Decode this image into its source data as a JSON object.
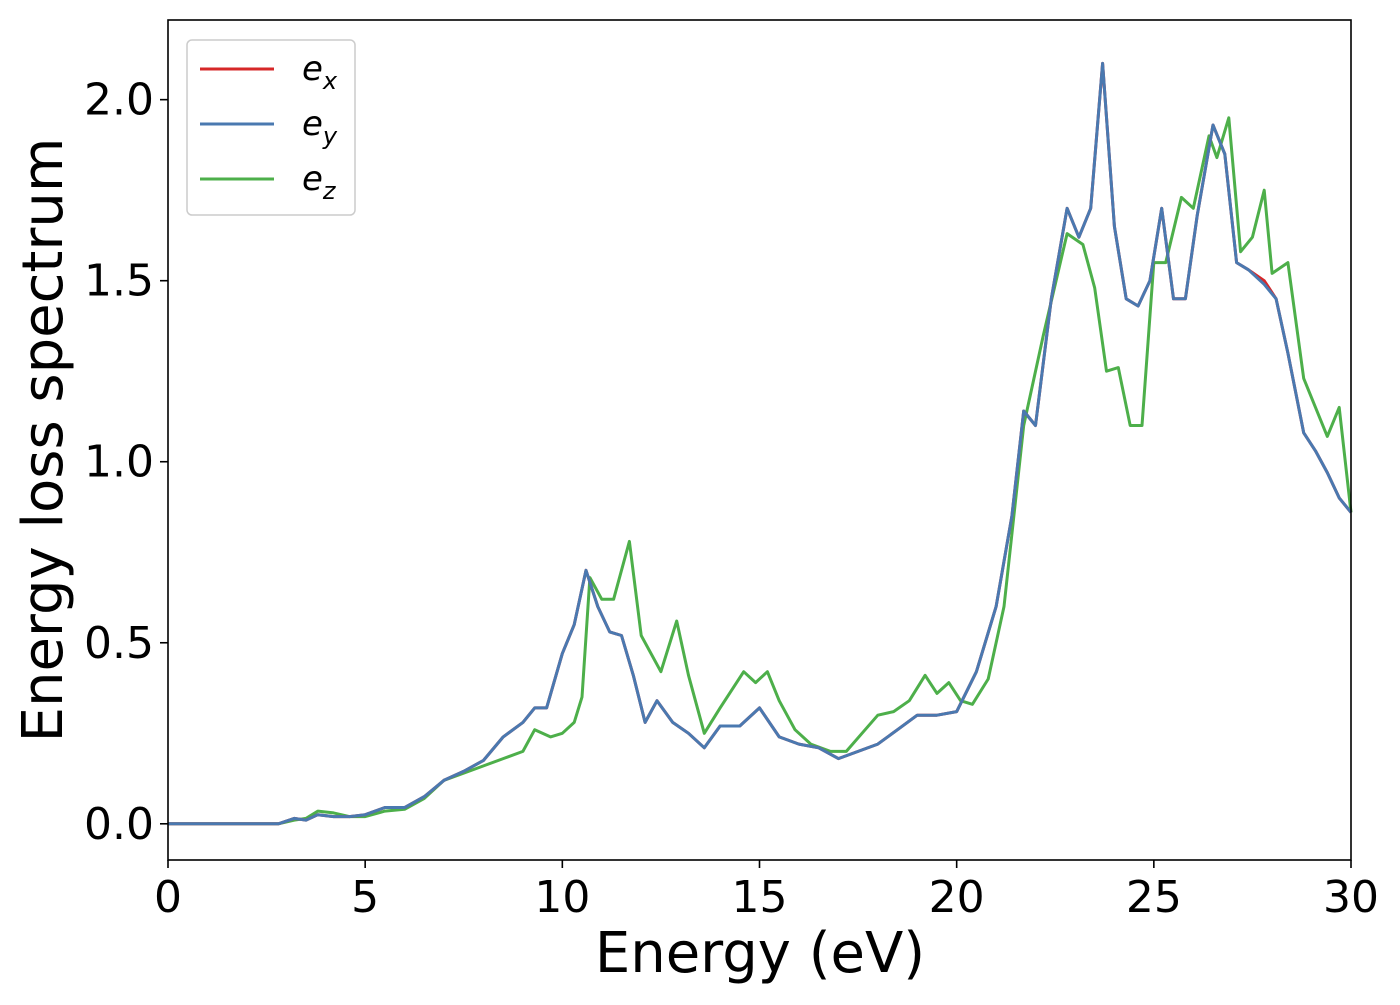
{
  "chart_data": {
    "type": "line",
    "xlabel": "Energy (eV)",
    "ylabel": "Energy loss spectrum",
    "xlim": [
      0,
      30
    ],
    "ylim": [
      -0.1,
      2.22
    ],
    "x_ticks": [
      "0",
      "5",
      "10",
      "15",
      "20",
      "25",
      "30"
    ],
    "y_ticks": [
      "0.0",
      "0.5",
      "1.0",
      "1.5",
      "2.0"
    ],
    "grid": false,
    "legend_position": "top-left",
    "series": [
      {
        "name_base": "e",
        "name_sub": "x",
        "color": "#d62728",
        "x": [
          0,
          2.8,
          3.2,
          3.5,
          3.8,
          4.2,
          4.6,
          5.0,
          5.5,
          6.0,
          6.5,
          7.0,
          7.5,
          8.0,
          8.5,
          9.0,
          9.3,
          9.6,
          10.0,
          10.3,
          10.6,
          10.9,
          11.2,
          11.5,
          11.8,
          12.1,
          12.4,
          12.8,
          13.2,
          13.6,
          14.0,
          14.5,
          15.0,
          15.5,
          16.0,
          16.5,
          17.0,
          17.5,
          18.0,
          18.5,
          19.0,
          19.5,
          20.0,
          20.5,
          21.0,
          21.4,
          21.7,
          22.0,
          22.4,
          22.8,
          23.1,
          23.4,
          23.7,
          24.0,
          24.3,
          24.6,
          24.9,
          25.2,
          25.5,
          25.8,
          26.1,
          26.5,
          26.8,
          27.1,
          27.4,
          27.8,
          28.1,
          28.4,
          28.8,
          29.1,
          29.4,
          29.7,
          30.0
        ],
        "values": [
          0.0,
          0.0,
          0.015,
          0.01,
          0.025,
          0.02,
          0.02,
          0.025,
          0.045,
          0.045,
          0.075,
          0.12,
          0.145,
          0.175,
          0.24,
          0.28,
          0.32,
          0.32,
          0.47,
          0.55,
          0.7,
          0.6,
          0.53,
          0.52,
          0.41,
          0.28,
          0.34,
          0.28,
          0.25,
          0.21,
          0.27,
          0.27,
          0.32,
          0.24,
          0.22,
          0.21,
          0.18,
          0.2,
          0.22,
          0.26,
          0.3,
          0.3,
          0.31,
          0.42,
          0.6,
          0.85,
          1.14,
          1.1,
          1.45,
          1.7,
          1.62,
          1.7,
          2.1,
          1.65,
          1.45,
          1.43,
          1.5,
          1.7,
          1.45,
          1.45,
          1.68,
          1.93,
          1.85,
          1.55,
          1.53,
          1.5,
          1.45,
          1.3,
          1.08,
          1.03,
          0.97,
          0.9,
          0.86
        ]
      },
      {
        "name_base": "e",
        "name_sub": "y",
        "color": "#4a79b0",
        "x": [
          0,
          2.8,
          3.2,
          3.5,
          3.8,
          4.2,
          4.6,
          5.0,
          5.5,
          6.0,
          6.5,
          7.0,
          7.5,
          8.0,
          8.5,
          9.0,
          9.3,
          9.6,
          10.0,
          10.3,
          10.6,
          10.9,
          11.2,
          11.5,
          11.8,
          12.1,
          12.4,
          12.8,
          13.2,
          13.6,
          14.0,
          14.5,
          15.0,
          15.5,
          16.0,
          16.5,
          17.0,
          17.5,
          18.0,
          18.5,
          19.0,
          19.5,
          20.0,
          20.5,
          21.0,
          21.4,
          21.7,
          22.0,
          22.4,
          22.8,
          23.1,
          23.4,
          23.7,
          24.0,
          24.3,
          24.6,
          24.9,
          25.2,
          25.5,
          25.8,
          26.1,
          26.5,
          26.8,
          27.1,
          27.4,
          27.8,
          28.1,
          28.4,
          28.8,
          29.1,
          29.4,
          29.7,
          30.0
        ],
        "values": [
          0.0,
          0.0,
          0.015,
          0.01,
          0.025,
          0.02,
          0.02,
          0.025,
          0.045,
          0.045,
          0.075,
          0.12,
          0.145,
          0.175,
          0.24,
          0.28,
          0.32,
          0.32,
          0.47,
          0.55,
          0.7,
          0.6,
          0.53,
          0.52,
          0.41,
          0.28,
          0.34,
          0.28,
          0.25,
          0.21,
          0.27,
          0.27,
          0.32,
          0.24,
          0.22,
          0.21,
          0.18,
          0.2,
          0.22,
          0.26,
          0.3,
          0.3,
          0.31,
          0.42,
          0.6,
          0.85,
          1.14,
          1.1,
          1.45,
          1.7,
          1.62,
          1.7,
          2.1,
          1.65,
          1.45,
          1.43,
          1.5,
          1.7,
          1.45,
          1.45,
          1.68,
          1.93,
          1.85,
          1.55,
          1.53,
          1.49,
          1.45,
          1.3,
          1.08,
          1.03,
          0.97,
          0.9,
          0.86
        ]
      },
      {
        "name_base": "e",
        "name_sub": "z",
        "color": "#4daf4a",
        "x": [
          0,
          2.8,
          3.2,
          3.5,
          3.8,
          4.2,
          4.6,
          5.0,
          5.5,
          6.0,
          6.5,
          7.0,
          7.5,
          8.0,
          8.5,
          9.0,
          9.3,
          9.7,
          10.0,
          10.3,
          10.5,
          10.7,
          11.0,
          11.3,
          11.7,
          12.0,
          12.5,
          12.9,
          13.2,
          13.6,
          14.0,
          14.6,
          14.9,
          15.2,
          15.5,
          15.9,
          16.3,
          16.8,
          17.2,
          17.6,
          18.0,
          18.4,
          18.8,
          19.2,
          19.5,
          19.8,
          20.1,
          20.4,
          20.8,
          21.2,
          21.7,
          22.2,
          22.8,
          23.2,
          23.5,
          23.8,
          24.1,
          24.4,
          24.7,
          25.0,
          25.3,
          25.7,
          26.0,
          26.4,
          26.6,
          26.9,
          27.2,
          27.5,
          27.8,
          28.0,
          28.4,
          28.8,
          29.1,
          29.4,
          29.7,
          30.0
        ],
        "values": [
          0.0,
          0.0,
          0.01,
          0.015,
          0.035,
          0.03,
          0.02,
          0.02,
          0.035,
          0.04,
          0.07,
          0.12,
          0.14,
          0.16,
          0.18,
          0.2,
          0.26,
          0.24,
          0.25,
          0.28,
          0.35,
          0.68,
          0.62,
          0.62,
          0.78,
          0.52,
          0.42,
          0.56,
          0.41,
          0.25,
          0.32,
          0.42,
          0.39,
          0.42,
          0.34,
          0.26,
          0.22,
          0.2,
          0.2,
          0.25,
          0.3,
          0.31,
          0.34,
          0.41,
          0.36,
          0.39,
          0.34,
          0.33,
          0.4,
          0.6,
          1.1,
          1.35,
          1.63,
          1.6,
          1.48,
          1.25,
          1.26,
          1.1,
          1.1,
          1.55,
          1.55,
          1.73,
          1.7,
          1.9,
          1.84,
          1.95,
          1.58,
          1.62,
          1.75,
          1.52,
          1.55,
          1.23,
          1.15,
          1.07,
          1.15,
          0.86
        ]
      }
    ]
  }
}
